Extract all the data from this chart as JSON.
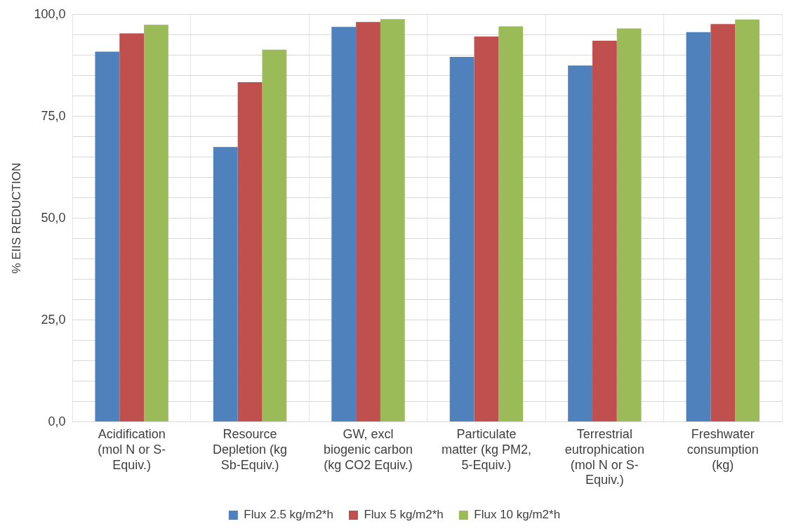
{
  "chart_data": {
    "type": "bar",
    "ylabel": "% EIIS REDUCTION",
    "categories": [
      "Acidification\n(mol N or S-\nEquiv.)",
      "Resource\nDepletion (kg\nSb-Equiv.)",
      "GW, excl\nbiogenic carbon\n(kg CO2 Equiv.)",
      "Particulate\nmatter (kg PM2,\n5-Equiv.)",
      "Terrestrial\neutrophication\n(mol N or S-\nEquiv.)",
      "Freshwater\nconsumption\n(kg)"
    ],
    "series": [
      {
        "name": "Flux 2.5 kg/m2*h",
        "color": "#4f81bd",
        "values": [
          90.9,
          67.5,
          97.0,
          89.6,
          87.5,
          95.7
        ]
      },
      {
        "name": "Flux 5 kg/m2*h",
        "color": "#c0504d",
        "values": [
          95.4,
          83.4,
          98.2,
          94.6,
          93.6,
          97.7
        ]
      },
      {
        "name": "Flux 10 kg/m2*h",
        "color": "#9bbb59",
        "values": [
          97.5,
          91.4,
          98.9,
          97.1,
          96.6,
          98.8
        ]
      }
    ],
    "ylim": [
      0,
      100
    ],
    "yticks": [
      {
        "value": 0,
        "label": "0,0"
      },
      {
        "value": 5,
        "label": null
      },
      {
        "value": 10,
        "label": null
      },
      {
        "value": 15,
        "label": null
      },
      {
        "value": 20,
        "label": null
      },
      {
        "value": 25,
        "label": "25,0"
      },
      {
        "value": 30,
        "label": null
      },
      {
        "value": 35,
        "label": null
      },
      {
        "value": 40,
        "label": null
      },
      {
        "value": 45,
        "label": null
      },
      {
        "value": 50,
        "label": "50,0"
      },
      {
        "value": 55,
        "label": null
      },
      {
        "value": 60,
        "label": null
      },
      {
        "value": 65,
        "label": null
      },
      {
        "value": 70,
        "label": null
      },
      {
        "value": 75,
        "label": "75,0"
      },
      {
        "value": 80,
        "label": null
      },
      {
        "value": 85,
        "label": null
      },
      {
        "value": 90,
        "label": null
      },
      {
        "value": 95,
        "label": null
      },
      {
        "value": 100,
        "label": "100,0"
      }
    ],
    "grid": true,
    "legend": "bottom"
  }
}
